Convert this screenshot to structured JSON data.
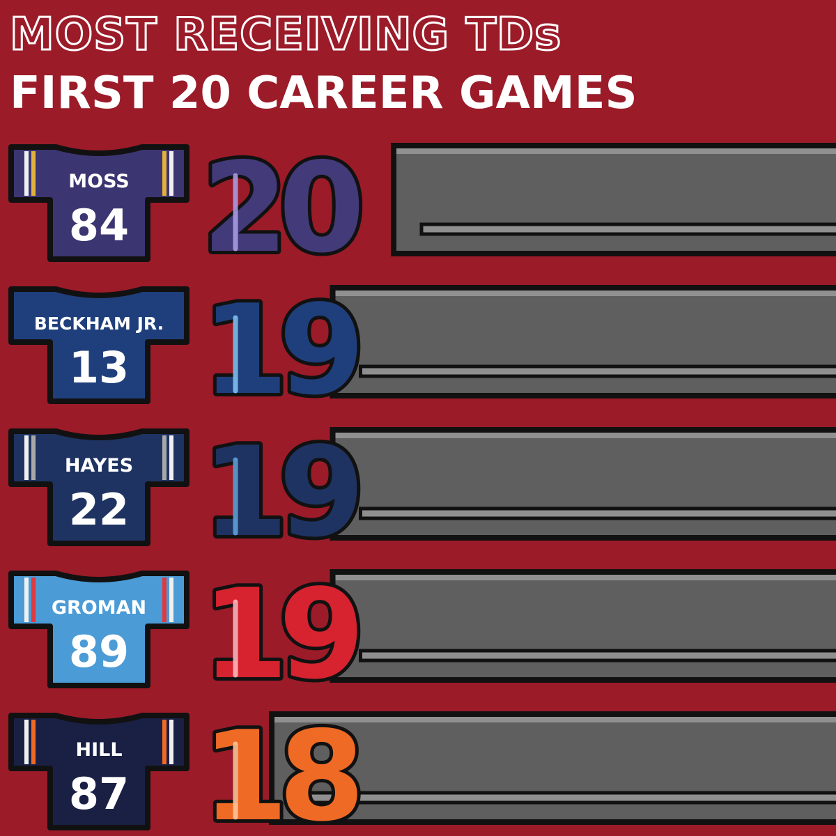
{
  "chart_data": {
    "type": "bar",
    "title": "MOST RECEIVING TDs",
    "subtitle": "FIRST 20 CAREER GAMES",
    "categories": [
      "MOSS",
      "BECKHAM JR.",
      "HAYES",
      "GROMAN",
      "HILL"
    ],
    "jersey_numbers": [
      "84",
      "13",
      "22",
      "89",
      "87"
    ],
    "values": [
      20,
      19,
      19,
      19,
      18
    ],
    "value_labels": [
      "20",
      "19",
      "19",
      "19",
      "18"
    ],
    "colors": {
      "background": "#9b1b29",
      "bar_track": "#5f5f5f",
      "bar_top": "#909090",
      "outline": "#111111",
      "rows": [
        {
          "jersey": "#3b3572",
          "stripe1": "#f0f0f0",
          "stripe2": "#e2b23a",
          "number": "#433a7a",
          "highlight": "#a99be0"
        },
        {
          "jersey": "#1f3f7c",
          "stripe1": "#1f3f7c",
          "stripe2": "#1f3f7c",
          "number": "#1f3f7c",
          "highlight": "#7cc0ee"
        },
        {
          "jersey": "#1e3361",
          "stripe1": "#f0f0f0",
          "stripe2": "#a8a8a8",
          "number": "#1e3361",
          "highlight": "#5ea0d8"
        },
        {
          "jersey": "#4b9bd6",
          "stripe1": "#f0f0f0",
          "stripe2": "#e03a3e",
          "number": "#d6232f",
          "highlight": "#ffb6bc"
        },
        {
          "jersey": "#1a2044",
          "stripe1": "#f0f0f0",
          "stripe2": "#ef6a25",
          "number": "#ef6a25",
          "highlight": "#ffc39a"
        }
      ]
    },
    "xlim": [
      0,
      20
    ]
  }
}
